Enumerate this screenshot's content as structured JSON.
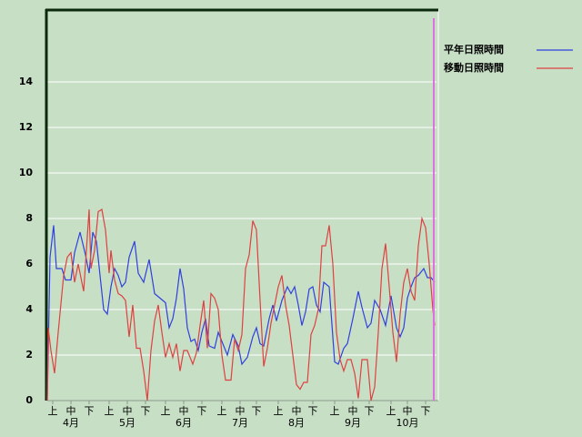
{
  "chart_data": {
    "type": "line",
    "xlim": [
      0,
      214
    ],
    "ylim": [
      0,
      17.2
    ],
    "yticks": [
      0,
      2,
      4,
      6,
      8,
      10,
      12,
      14
    ],
    "grid": true,
    "xticks": [
      {
        "value": 3,
        "label": "上"
      },
      {
        "value": 13,
        "label": "中"
      },
      {
        "value": 23,
        "label": "下"
      },
      {
        "value": 34,
        "label": "上"
      },
      {
        "value": 44,
        "label": "中"
      },
      {
        "value": 54,
        "label": "下"
      },
      {
        "value": 65,
        "label": "上"
      },
      {
        "value": 75,
        "label": "中"
      },
      {
        "value": 85,
        "label": "下"
      },
      {
        "value": 96,
        "label": "上"
      },
      {
        "value": 106,
        "label": "中"
      },
      {
        "value": 115,
        "label": "下"
      },
      {
        "value": 127,
        "label": "上"
      },
      {
        "value": 137,
        "label": "中"
      },
      {
        "value": 146,
        "label": "下"
      },
      {
        "value": 158,
        "label": "上"
      },
      {
        "value": 168,
        "label": "中"
      },
      {
        "value": 177,
        "label": "下"
      },
      {
        "value": 189,
        "label": "上"
      },
      {
        "value": 198,
        "label": "中"
      },
      {
        "value": 208,
        "label": "下"
      }
    ],
    "month_labels": [
      {
        "value": 13,
        "label": "4月"
      },
      {
        "value": 44,
        "label": "5月"
      },
      {
        "value": 75,
        "label": "6月"
      },
      {
        "value": 106,
        "label": "7月"
      },
      {
        "value": 137,
        "label": "8月"
      },
      {
        "value": 168,
        "label": "9月"
      },
      {
        "value": 198,
        "label": "10月"
      }
    ],
    "marker_line": {
      "value": 212.5,
      "color": "#e070e0"
    },
    "series": [
      {
        "name": "平年日照時間",
        "color": "#3040e0",
        "x": [
          0,
          1.5,
          3.5,
          5,
          8,
          10,
          13,
          15,
          18,
          21,
          23,
          25,
          27,
          29,
          31,
          33,
          35,
          37,
          39,
          41,
          43,
          45,
          48,
          50,
          53,
          56,
          59,
          62,
          65,
          67,
          69,
          71,
          73,
          75,
          77,
          79,
          81,
          83,
          85,
          87,
          89,
          92,
          94,
          96,
          99,
          102,
          105,
          107,
          110,
          113,
          115,
          117,
          119,
          122,
          124,
          126,
          129,
          132,
          134,
          136,
          138,
          140,
          142,
          144,
          146,
          148,
          150,
          152,
          155,
          158,
          160,
          163,
          165,
          168,
          171,
          173,
          176,
          178,
          180,
          183,
          186,
          189,
          192,
          194,
          196,
          198,
          200,
          202,
          204,
          207,
          209,
          211,
          213
        ],
        "values": [
          0,
          6.3,
          7.7,
          5.8,
          5.8,
          5.3,
          5.3,
          6.5,
          7.4,
          6.4,
          5.6,
          7.4,
          7.0,
          5.5,
          4.0,
          3.8,
          5.0,
          5.8,
          5.5,
          5.0,
          5.2,
          6.3,
          7.0,
          5.6,
          5.2,
          6.2,
          4.7,
          4.5,
          4.3,
          3.2,
          3.6,
          4.5,
          5.8,
          4.9,
          3.2,
          2.6,
          2.7,
          2.2,
          3.0,
          3.6,
          2.4,
          2.3,
          3.0,
          2.6,
          2.0,
          2.9,
          2.4,
          1.6,
          1.9,
          2.8,
          3.2,
          2.5,
          2.4,
          3.6,
          4.2,
          3.5,
          4.4,
          5.0,
          4.7,
          5.0,
          4.2,
          3.3,
          3.9,
          4.9,
          5.0,
          4.2,
          3.9,
          5.2,
          5.0,
          1.7,
          1.6,
          2.3,
          2.5,
          3.6,
          4.8,
          4.1,
          3.2,
          3.4,
          4.4,
          4.0,
          3.3,
          4.6,
          3.2,
          2.8,
          3.2,
          4.5,
          5.0,
          5.4,
          5.5,
          5.8,
          5.4,
          5.4,
          5.2
        ]
      },
      {
        "name": "移動日照時間",
        "color": "#e04040",
        "x": [
          0,
          0.5,
          2,
          4,
          6,
          9,
          11,
          13,
          15,
          17,
          20,
          23,
          24,
          26,
          28,
          30,
          32,
          34,
          35,
          37,
          39,
          41,
          43,
          45,
          47,
          49,
          51,
          53,
          55,
          57,
          59,
          61,
          63,
          65,
          67,
          69,
          71,
          73,
          75,
          77,
          80,
          82,
          84,
          86,
          88,
          90,
          92,
          94,
          96,
          98,
          101,
          103,
          105,
          107,
          109,
          111,
          113,
          115,
          117,
          119,
          121,
          123,
          125,
          127,
          129,
          131,
          133,
          135,
          137,
          139,
          141,
          143,
          145,
          147,
          149,
          151,
          153,
          155,
          157,
          159,
          161,
          163,
          165,
          167,
          169,
          171,
          173,
          176,
          178,
          180,
          182,
          184,
          186,
          188,
          190,
          192,
          194,
          196,
          198,
          200,
          202,
          204,
          206,
          208,
          210,
          212,
          213
        ],
        "values": [
          0,
          3.2,
          2.2,
          1.2,
          3.0,
          5.5,
          6.3,
          6.5,
          5.2,
          6.0,
          4.8,
          8.4,
          5.8,
          6.6,
          8.3,
          8.4,
          7.5,
          5.6,
          6.6,
          5.3,
          4.7,
          4.6,
          4.4,
          2.8,
          4.2,
          2.3,
          2.3,
          1.3,
          0.0,
          2.2,
          3.5,
          4.2,
          3.0,
          1.9,
          2.5,
          1.9,
          2.5,
          1.3,
          2.2,
          2.2,
          1.6,
          2.1,
          3.3,
          4.4,
          2.3,
          4.7,
          4.5,
          4.0,
          2.0,
          0.9,
          0.9,
          2.7,
          2.2,
          2.9,
          5.8,
          6.4,
          7.9,
          7.5,
          4.4,
          1.5,
          2.3,
          3.4,
          4.2,
          5.0,
          5.5,
          4.2,
          3.3,
          2.0,
          0.7,
          0.5,
          0.8,
          0.8,
          2.9,
          3.3,
          4.0,
          6.8,
          6.8,
          7.7,
          6.0,
          3.0,
          1.8,
          1.3,
          1.8,
          1.8,
          1.2,
          0.1,
          1.8,
          1.8,
          0.0,
          0.6,
          3.0,
          5.8,
          6.9,
          5.0,
          3.0,
          1.7,
          3.8,
          5.2,
          5.8,
          4.8,
          4.4,
          6.8,
          8.0,
          7.6,
          6.0,
          4.0,
          3.3
        ]
      }
    ]
  }
}
